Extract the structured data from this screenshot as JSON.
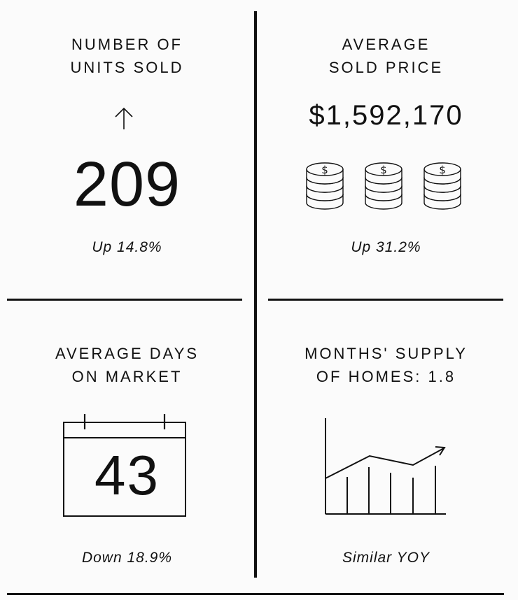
{
  "stats": {
    "units_sold": {
      "label": "NUMBER OF\nUNITS SOLD",
      "icon": "arrow-up-icon",
      "value": "209",
      "change": "Up 14.8%"
    },
    "avg_price": {
      "label": "AVERAGE\nSOLD PRICE",
      "value": "$1,592,170",
      "icon": "coin-stacks-icon",
      "change": "Up 31.2%"
    },
    "days_on_market": {
      "label": "AVERAGE DAYS\nON MARKET",
      "icon": "calendar-icon",
      "value": "43",
      "change": "Down 18.9%"
    },
    "months_supply": {
      "label": "MONTHS' SUPPLY\nOF HOMES: 1.8",
      "icon": "trend-chart-icon",
      "change": "Similar YOY"
    }
  }
}
